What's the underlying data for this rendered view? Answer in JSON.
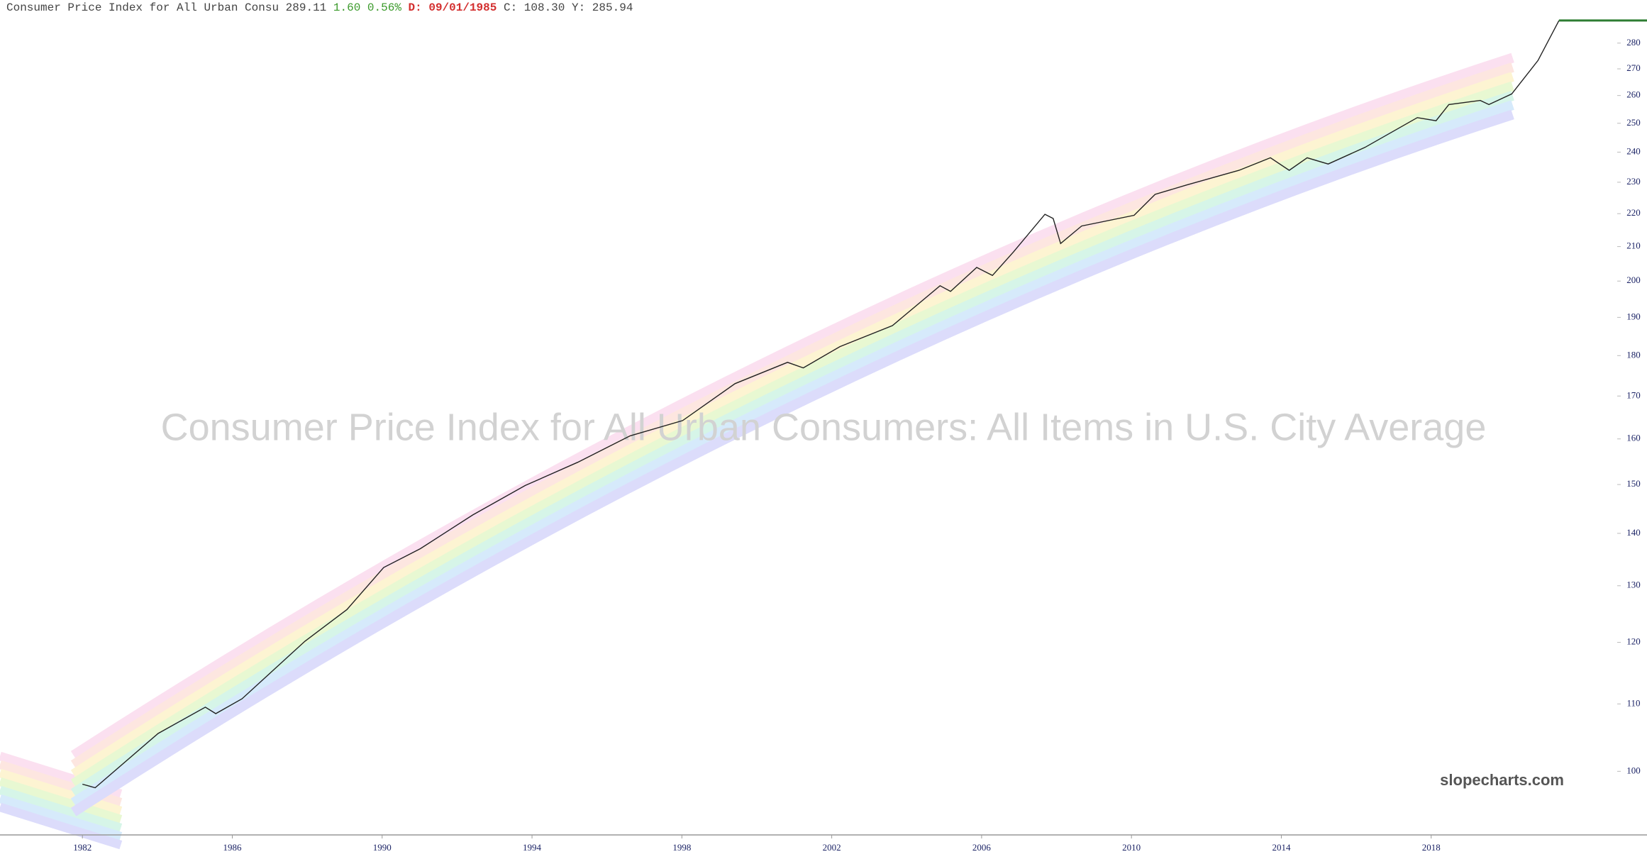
{
  "header": {
    "name": "Consumer Price Index for All Urban Consu",
    "last": "289.11",
    "change": "1.60",
    "change_pct": "0.56%",
    "date": "D: 09/01/1985",
    "close": "C: 108.30",
    "y": "Y: 285.94"
  },
  "chart_data": {
    "type": "line",
    "title": "Consumer Price Index for All Urban Consumers: All Items in U.S. City Average",
    "watermark": "slopecharts.com",
    "log_scale": true,
    "color": "#222222",
    "last_line_color": "#2e7d32",
    "x": [
      1982.0,
      1982.34,
      1984.02,
      1985.28,
      1985.56,
      1986.26,
      1987.94,
      1989.06,
      1990.04,
      1991.02,
      1992.42,
      1993.82,
      1995.22,
      1996.62,
      1998.02,
      1999.42,
      2000.82,
      2001.24,
      2002.22,
      2003.62,
      2004.89,
      2005.17,
      2005.87,
      2006.29,
      2006.85,
      2007.69,
      2007.91,
      2008.11,
      2008.67,
      2010.07,
      2010.63,
      2011.47,
      2012.87,
      2013.71,
      2014.21,
      2014.69,
      2015.25,
      2016.23,
      2017.63,
      2018.13,
      2018.47,
      2019.31,
      2019.54,
      2020.15,
      2020.85,
      2021.41
    ],
    "values": [
      98.2,
      97.7,
      105.5,
      109.5,
      108.5,
      110.8,
      120.2,
      125.7,
      133.4,
      137.0,
      143.7,
      149.8,
      154.8,
      160.7,
      164.2,
      173.0,
      178.3,
      176.9,
      182.3,
      187.8,
      198.7,
      197.1,
      203.9,
      201.6,
      208.4,
      219.8,
      218.5,
      210.9,
      216.2,
      219.5,
      226.1,
      229.1,
      233.9,
      238.1,
      233.9,
      238.1,
      236.0,
      241.6,
      252.0,
      250.9,
      256.7,
      258.2,
      256.7,
      260.6,
      273.2,
      289.11
    ],
    "xlim": [
      1979.8,
      2022.7
    ],
    "ylim": [
      91.4,
      297.6
    ],
    "xticks": [
      1982,
      1986,
      1990,
      1994,
      1998,
      2002,
      2006,
      2010,
      2014,
      2018
    ],
    "yticks": [
      100,
      110,
      120,
      130,
      140,
      150,
      160,
      170,
      180,
      190,
      200,
      210,
      220,
      230,
      240,
      250,
      260,
      270,
      280
    ]
  }
}
